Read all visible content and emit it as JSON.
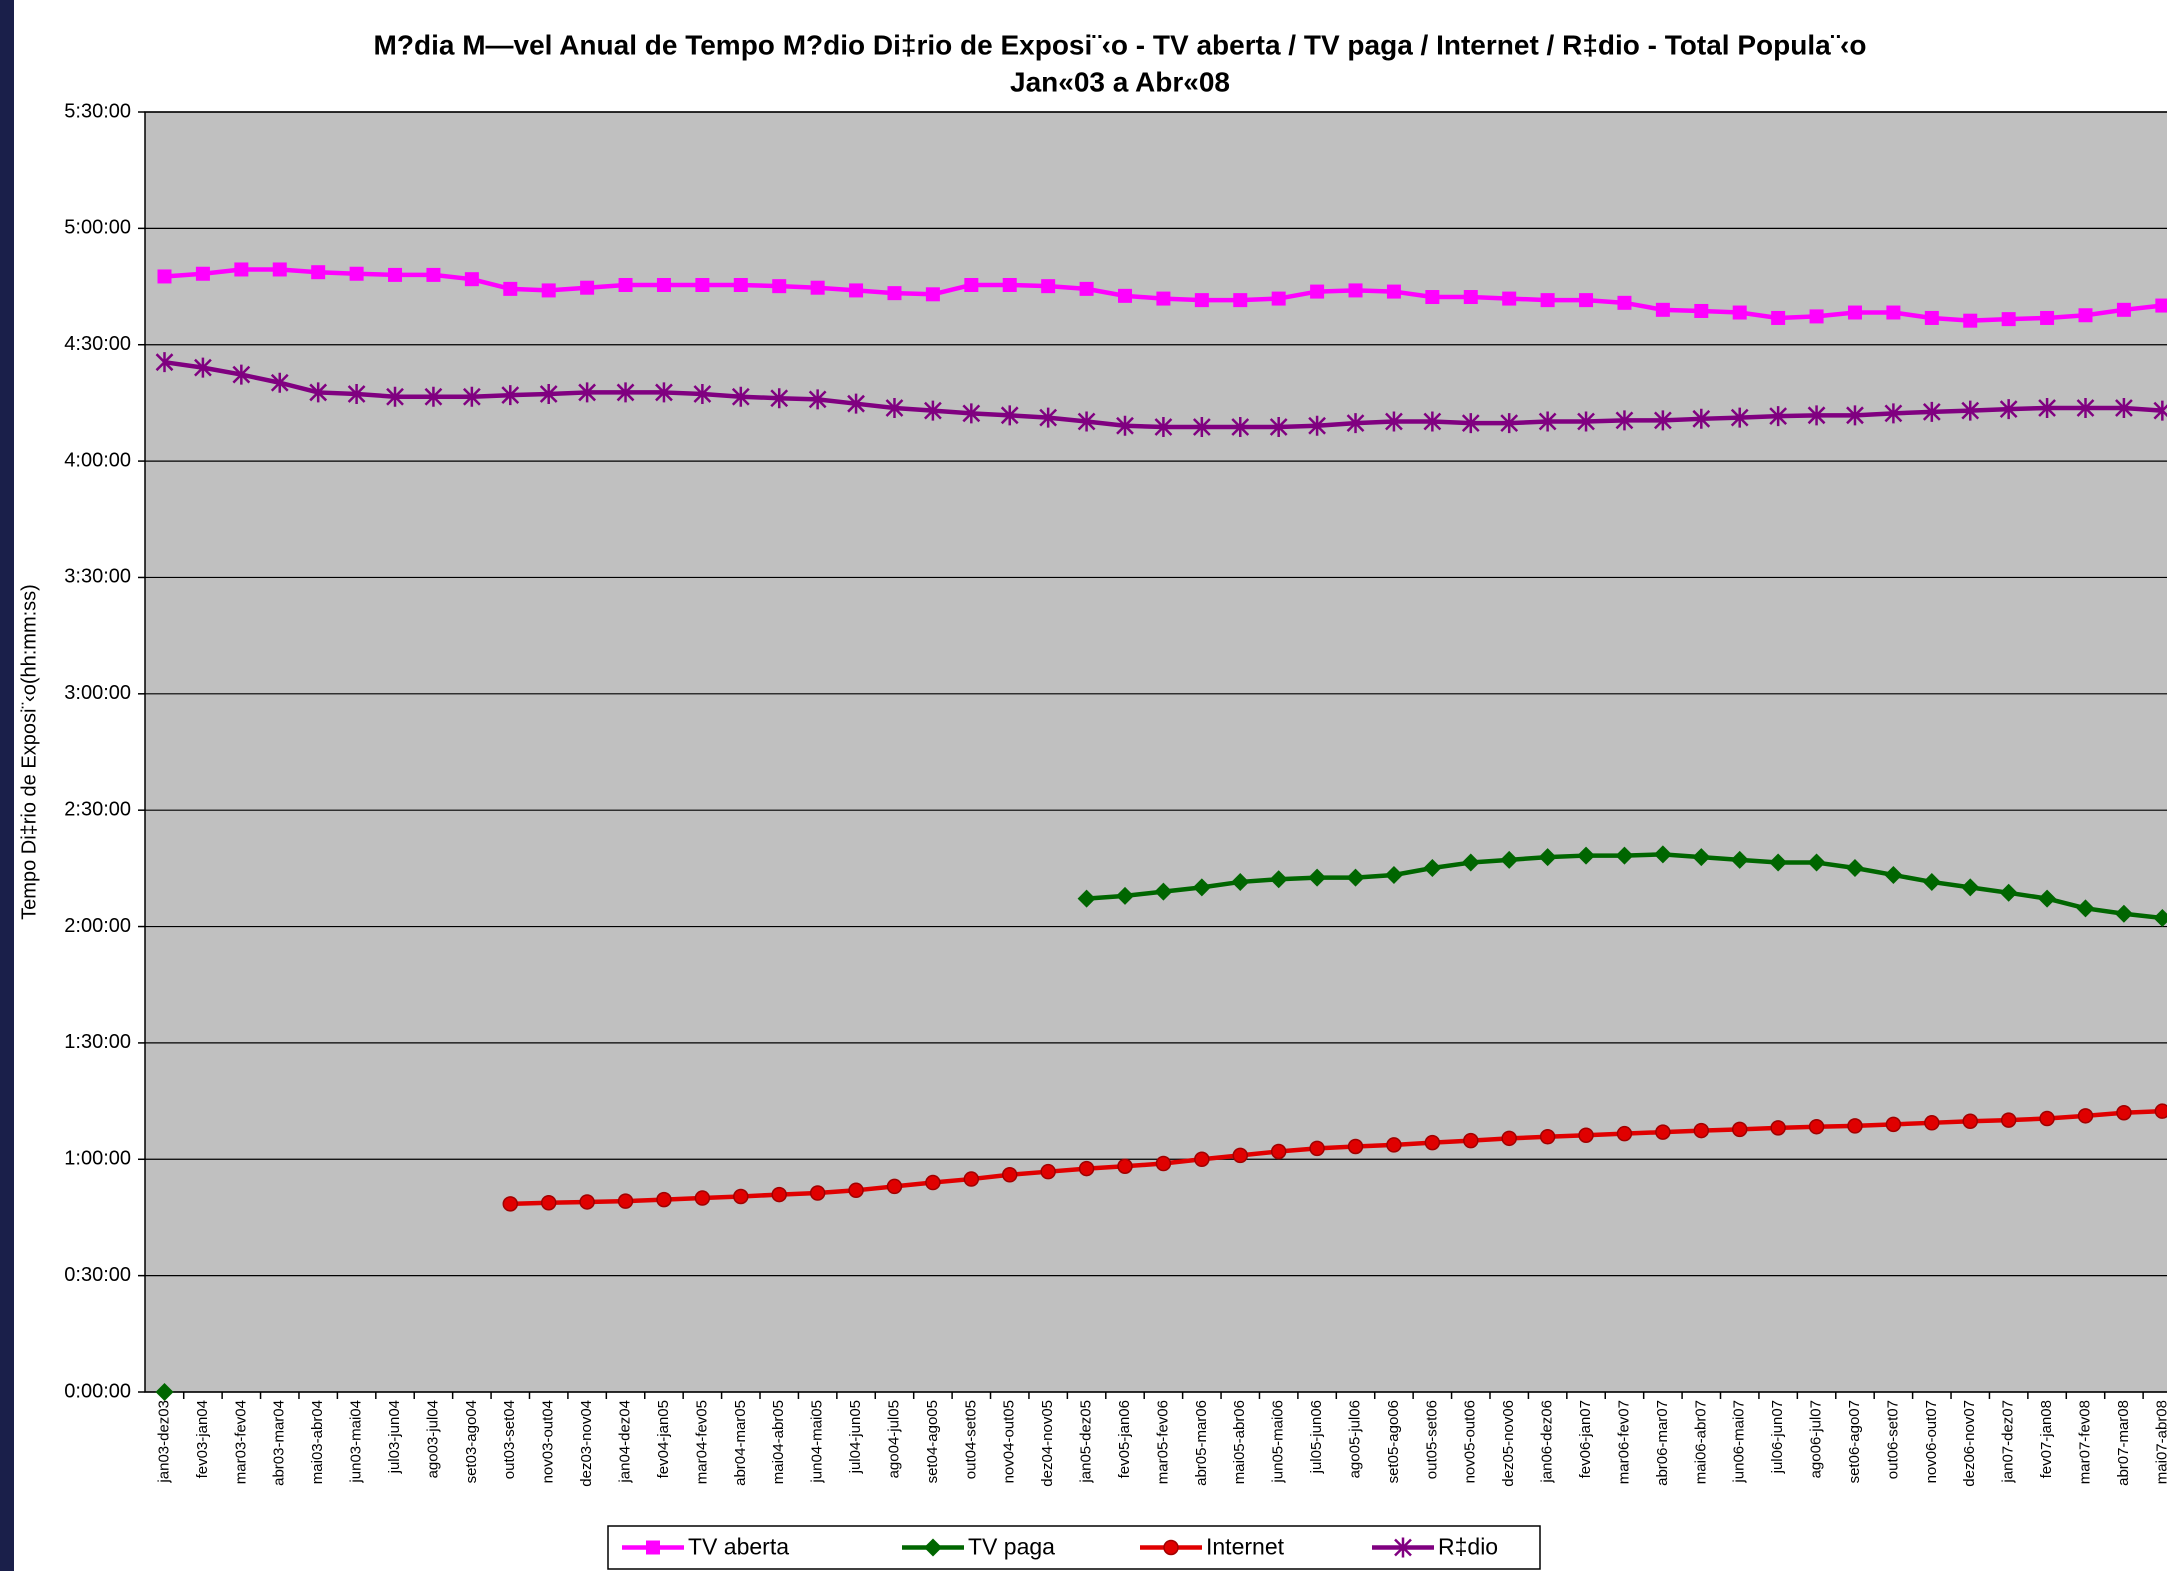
{
  "chart_data": {
    "type": "line",
    "title": "M?dia M—vel Anual de Tempo M?dio Di‡rio de Exposi¨‹o - TV aberta / TV paga / Internet / R‡dio - Total Popula¨‹o",
    "subtitle": "Jan«03 a Abr«08",
    "y_label": "Tempo Di‡rio de Exposi¨‹o(hh:mm:ss)",
    "categories": [
      "jan03-dez03",
      "fev03-jan04",
      "mar03-fev04",
      "abr03-mar04",
      "mai03-abr04",
      "jun03-mai04",
      "jul03-jun04",
      "ago03-jul04",
      "set03-ago04",
      "out03-set04",
      "nov03-out04",
      "dez03-nov04",
      "jan04-dez04",
      "fev04-jan05",
      "mar04-fev05",
      "abr04-mar05",
      "mai04-abr05",
      "jun04-mai05",
      "jul04-jun05",
      "ago04-jul05",
      "set04-ago05",
      "out04-set05",
      "nov04-out05",
      "dez04-nov05",
      "jan05-dez05",
      "fev05-jan06",
      "mar05-fev06",
      "abr05-mar06",
      "mai05-abr06",
      "jun05-mai06",
      "jul05-jun06",
      "ago05-jul06",
      "set05-ago06",
      "out05-set06",
      "nov05-out06",
      "dez05-nov06",
      "jan06-dez06",
      "fev06-jan07",
      "mar06-fev07",
      "abr06-mar07",
      "mai06-abr07",
      "jun06-mai07",
      "jul06-jun07",
      "ago06-jul07",
      "set06-ago07",
      "out06-set07",
      "nov06-out07",
      "dez06-nov07",
      "jan07-dez07",
      "fev07-jan08",
      "mar07-fev08",
      "abr07-mar08",
      "mai07-abr08"
    ],
    "series": [
      {
        "name": "TV aberta",
        "color": "#ff00ff",
        "marker": "square",
        "values": [
          287.6,
          288.3,
          289.4,
          289.4,
          288.7,
          288.3,
          288.0,
          288.0,
          286.9,
          284.4,
          284.0,
          284.7,
          285.4,
          285.4,
          285.4,
          285.4,
          285.1,
          284.7,
          284.0,
          283.3,
          283.0,
          285.4,
          285.4,
          285.1,
          284.4,
          282.6,
          281.9,
          281.5,
          281.5,
          281.9,
          283.7,
          284.0,
          283.7,
          282.3,
          282.3,
          281.9,
          281.5,
          281.5,
          280.8,
          279.0,
          278.7,
          278.3,
          276.9,
          277.3,
          278.3,
          278.3,
          276.9,
          276.2,
          276.6,
          276.9,
          277.6,
          279.0,
          280.1
        ]
      },
      {
        "name": "TV paga",
        "color": "#006600",
        "marker": "diamond",
        "values": [
          0,
          null,
          null,
          null,
          null,
          null,
          null,
          null,
          null,
          null,
          null,
          null,
          null,
          null,
          null,
          null,
          null,
          null,
          null,
          null,
          null,
          null,
          null,
          null,
          127.2,
          127.9,
          129.0,
          130.1,
          131.5,
          132.2,
          132.6,
          132.6,
          133.3,
          135.1,
          136.5,
          137.2,
          137.9,
          138.3,
          138.3,
          138.6,
          137.9,
          137.2,
          136.5,
          136.5,
          135.1,
          133.3,
          131.5,
          130.1,
          128.7,
          127.2,
          124.7,
          123.3,
          122.2
        ]
      },
      {
        "name": "Internet",
        "color": "#e00000",
        "marker": "circle",
        "values": [
          null,
          null,
          null,
          null,
          null,
          null,
          null,
          null,
          null,
          48.5,
          48.8,
          49.0,
          49.2,
          49.6,
          50.0,
          50.4,
          50.9,
          51.3,
          52.0,
          53.0,
          54.0,
          54.9,
          56.0,
          56.8,
          57.6,
          58.2,
          58.9,
          60.0,
          61.0,
          62.0,
          62.8,
          63.3,
          63.7,
          64.3,
          64.8,
          65.4,
          65.8,
          66.2,
          66.6,
          67.0,
          67.4,
          67.7,
          68.1,
          68.4,
          68.6,
          69.0,
          69.4,
          69.8,
          70.1,
          70.5,
          71.2,
          72.0,
          72.4
        ]
      },
      {
        "name": "R‡dio",
        "color": "#800080",
        "marker": "asterisk",
        "values": [
          265.5,
          264.1,
          262.3,
          260.2,
          257.7,
          257.3,
          256.6,
          256.6,
          256.6,
          257.0,
          257.3,
          257.7,
          257.7,
          257.7,
          257.3,
          256.6,
          256.2,
          255.9,
          254.8,
          253.7,
          253.0,
          252.3,
          251.8,
          251.2,
          250.2,
          249.1,
          248.8,
          248.8,
          248.8,
          248.8,
          249.1,
          249.8,
          250.2,
          250.2,
          249.8,
          249.8,
          250.2,
          250.2,
          250.5,
          250.5,
          250.9,
          251.2,
          251.6,
          251.8,
          251.8,
          252.3,
          252.7,
          253.0,
          253.4,
          253.7,
          253.7,
          253.7,
          253.0
        ]
      }
    ],
    "ylim": [
      0,
      330
    ],
    "yticks": [
      {
        "value": 0,
        "label": "0:00:00"
      },
      {
        "value": 30,
        "label": "0:30:00"
      },
      {
        "value": 60,
        "label": "1:00:00"
      },
      {
        "value": 90,
        "label": "1:30:00"
      },
      {
        "value": 120,
        "label": "2:00:00"
      },
      {
        "value": 150,
        "label": "2:30:00"
      },
      {
        "value": 180,
        "label": "3:00:00"
      },
      {
        "value": 210,
        "label": "3:30:00"
      },
      {
        "value": 240,
        "label": "4:00:00"
      },
      {
        "value": 270,
        "label": "4:30:00"
      },
      {
        "value": 300,
        "label": "5:00:00"
      },
      {
        "value": 330,
        "label": "5:30:00"
      }
    ],
    "grid": true,
    "legend": "bottom",
    "plot_background": "#c0c0c0"
  }
}
